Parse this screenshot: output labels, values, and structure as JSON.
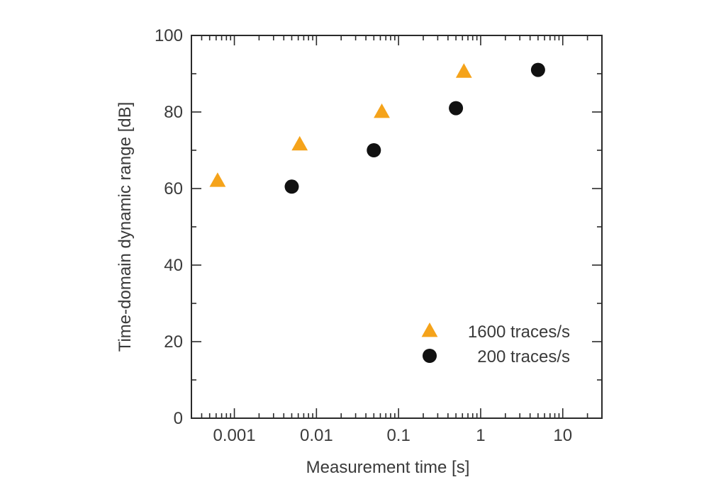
{
  "chart_data": {
    "type": "scatter",
    "title": "",
    "xlabel": "Measurement time [s]",
    "ylabel": "Time-domain dynamic range [dB]",
    "x_scale": "log",
    "xlim": [
      0.0003,
      30
    ],
    "ylim": [
      0,
      100
    ],
    "x_ticks": [
      {
        "value": 0.001,
        "label": "0.001"
      },
      {
        "value": 0.01,
        "label": "0.01"
      },
      {
        "value": 0.1,
        "label": "0.1"
      },
      {
        "value": 1,
        "label": "1"
      },
      {
        "value": 10,
        "label": "10"
      }
    ],
    "y_ticks": [
      {
        "value": 0,
        "label": "0"
      },
      {
        "value": 20,
        "label": "20"
      },
      {
        "value": 40,
        "label": "40"
      },
      {
        "value": 60,
        "label": "60"
      },
      {
        "value": 80,
        "label": "80"
      },
      {
        "value": 100,
        "label": "100"
      }
    ],
    "grid": false,
    "legend_position": "bottom-right",
    "series": [
      {
        "name": "1600 traces/s",
        "marker": "triangle",
        "color": "#f5a31a",
        "x": [
          0.000625,
          0.00625,
          0.0625,
          0.625
        ],
        "y": [
          62,
          71.5,
          80,
          90.5
        ]
      },
      {
        "name": "200 traces/s",
        "marker": "circle",
        "color": "#111111",
        "x": [
          0.005,
          0.05,
          0.5,
          5
        ],
        "y": [
          60.5,
          70,
          81,
          91
        ]
      }
    ]
  }
}
